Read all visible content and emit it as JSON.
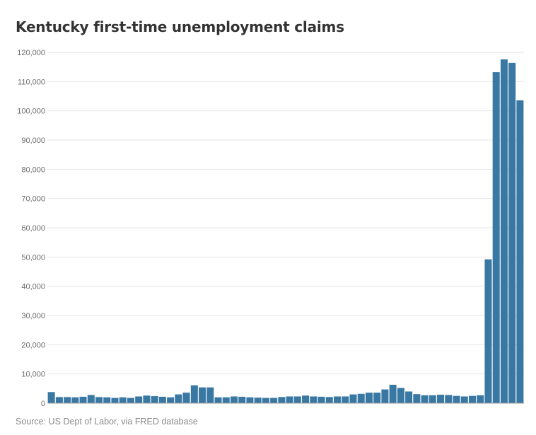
{
  "chart_data": {
    "type": "bar",
    "title": "Kentucky first-time unemployment claims",
    "xlabel": "",
    "ylabel": "",
    "ylim": [
      0,
      120000
    ],
    "y_ticks": [
      0,
      10000,
      20000,
      30000,
      40000,
      50000,
      60000,
      70000,
      80000,
      90000,
      100000,
      110000,
      120000
    ],
    "y_tick_labels": [
      "0",
      "10,000",
      "20,000",
      "30,000",
      "40,000",
      "50,000",
      "60,000",
      "70,000",
      "80,000",
      "90,000",
      "100,000",
      "110,000",
      "120,000"
    ],
    "grid": true,
    "color": "#3a78a4",
    "values": [
      3800,
      2100,
      2100,
      2000,
      2200,
      2800,
      2100,
      2000,
      1800,
      2000,
      1800,
      2300,
      2600,
      2400,
      2200,
      2000,
      3000,
      3600,
      6100,
      5400,
      5400,
      2000,
      2000,
      2300,
      2200,
      2000,
      1900,
      1800,
      1800,
      2100,
      2300,
      2300,
      2600,
      2300,
      2200,
      2100,
      2300,
      2300,
      3000,
      3200,
      3600,
      3600,
      4700,
      6300,
      5200,
      4000,
      3100,
      2700,
      2700,
      2900,
      2800,
      2500,
      2300,
      2500,
      2700,
      49200,
      113200,
      117600,
      116400,
      103600
    ]
  },
  "source": "Source: US Dept of Labor, via FRED database"
}
